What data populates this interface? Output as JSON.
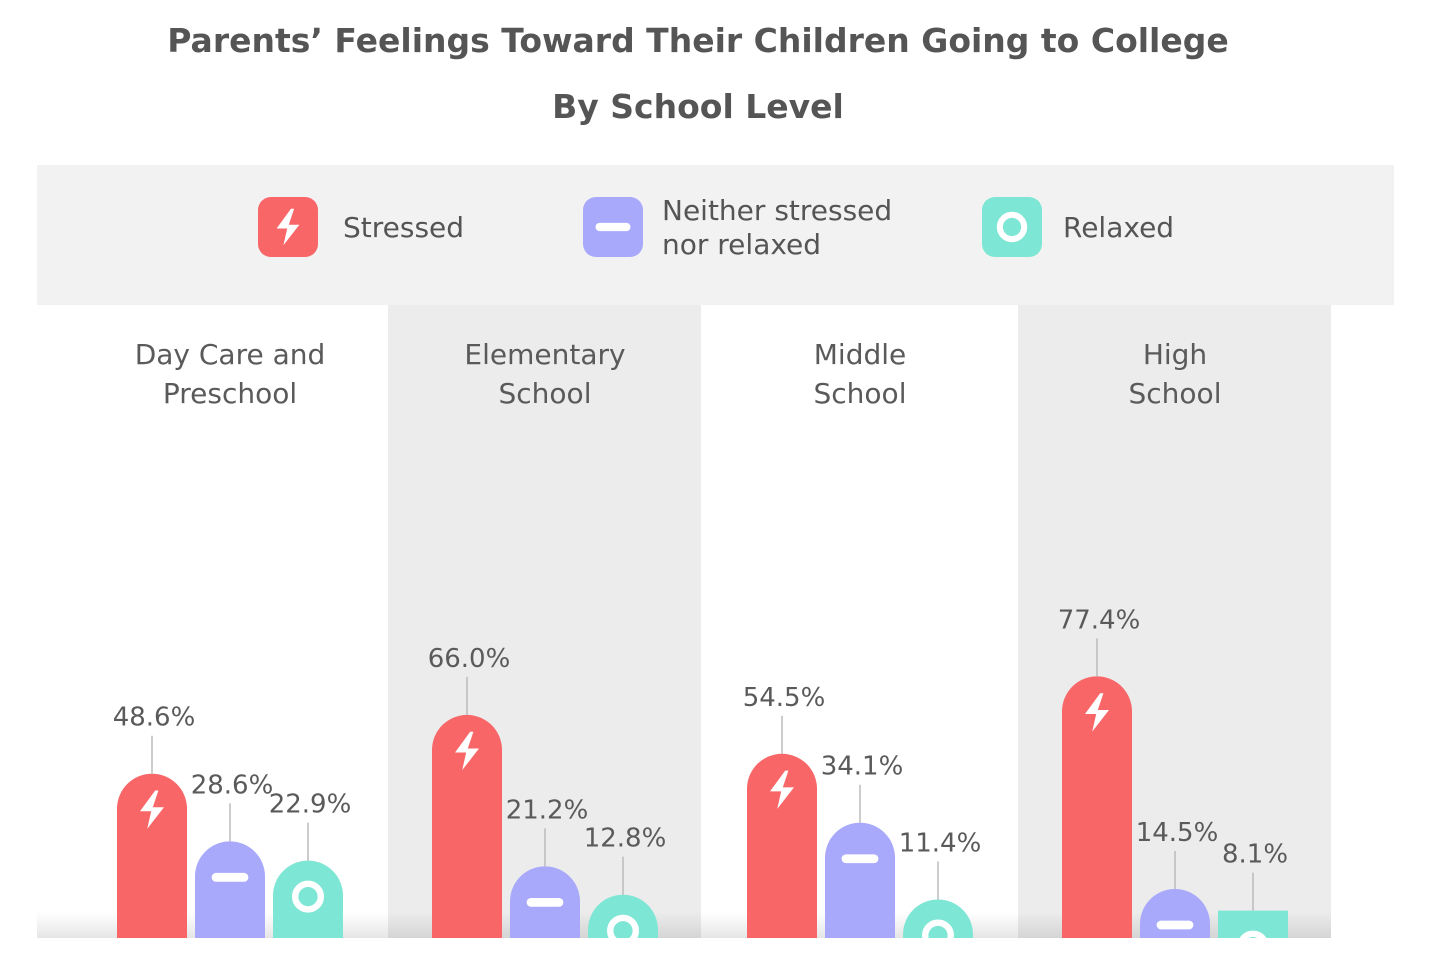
{
  "chart_data": {
    "type": "bar",
    "title": "Parents’ Feelings Toward Their Children Going to College",
    "subtitle": "By School Level",
    "categories": [
      [
        "Day Care and",
        "Preschool"
      ],
      [
        "Elementary",
        "School"
      ],
      [
        "Middle",
        "School"
      ],
      [
        "High",
        "School"
      ]
    ],
    "series": [
      {
        "name": "Stressed",
        "values": [
          48.6,
          66.0,
          54.5,
          77.4
        ],
        "labels": [
          "48.6%",
          "66.0%",
          "54.5%",
          "77.4%"
        ],
        "color": "#f86667",
        "icon": "lightning-bolt-icon"
      },
      {
        "name": "Neither stressed nor relaxed",
        "values": [
          28.6,
          21.2,
          34.1,
          14.5
        ],
        "labels": [
          "28.6%",
          "21.2%",
          "34.1%",
          "14.5%"
        ],
        "color": "#a8a9fa",
        "icon": "minus-icon"
      },
      {
        "name": "Relaxed",
        "values": [
          22.9,
          12.8,
          11.4,
          8.1
        ],
        "labels": [
          "22.9%",
          "12.8%",
          "11.4%",
          "8.1%"
        ],
        "color": "#7ee6d5",
        "icon": "ring-icon"
      }
    ],
    "legend": {
      "position": "top",
      "entries": [
        {
          "lines": [
            "Stressed"
          ],
          "color": "#f86667",
          "icon": "lightning-bolt-icon"
        },
        {
          "lines": [
            "Neither stressed",
            "nor relaxed"
          ],
          "color": "#a8a9fa",
          "icon": "minus-icon"
        },
        {
          "lines": [
            "Relaxed"
          ],
          "color": "#7ee6d5",
          "icon": "ring-icon"
        }
      ]
    },
    "ylim": [
      0,
      100
    ],
    "grid": false,
    "data_labels": true,
    "colors": {
      "title": "#555555",
      "legend_band": "#f2f2f2",
      "alt_column": "#ececec",
      "text": "#5a5a5a",
      "leader": "#bbbbbb"
    }
  }
}
